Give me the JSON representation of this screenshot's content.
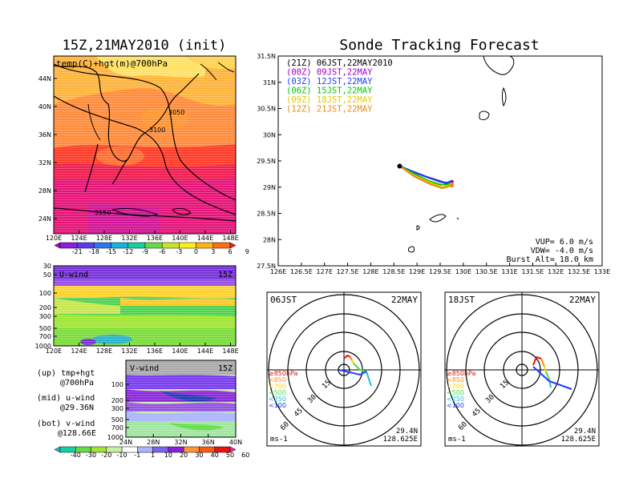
{
  "left": {
    "title": "15Z,21MAY2010 (init)",
    "map": {
      "label": "temp(C)+hgt(m)@700hPa",
      "y_ticks": [
        "44N",
        "40N",
        "36N",
        "32N",
        "28N",
        "24N"
      ],
      "x_ticks": [
        "120E",
        "124E",
        "128E",
        "132E",
        "136E",
        "140E",
        "144E",
        "148E"
      ],
      "contour_labels": [
        "3050",
        "3100",
        "3150"
      ]
    },
    "colorbar1": {
      "labels": [
        "-21",
        "-18",
        "-15",
        "-12",
        "-9",
        "-6",
        "-3",
        "0",
        "3",
        "6",
        "9"
      ],
      "colors": [
        "#b400b4",
        "#8c1edc",
        "#5a3cf0",
        "#2878f0",
        "#14b4dc",
        "#14d2a0",
        "#64dc46",
        "#c8e628",
        "#fff014",
        "#ffb414",
        "#ff6e14",
        "#f01e1e"
      ]
    },
    "uwind": {
      "label": "U-wind",
      "time": "15Z",
      "y_ticks": [
        "30",
        "50",
        "100",
        "200",
        "300",
        "500",
        "700",
        "1000"
      ],
      "x_ticks": [
        "120E",
        "124E",
        "128E",
        "132E",
        "136E",
        "140E",
        "144E",
        "148E"
      ]
    },
    "vwind": {
      "label": "V-wind",
      "time": "15Z",
      "y_ticks": [
        "100",
        "200",
        "300",
        "500",
        "700",
        "1000"
      ],
      "x_ticks": [
        "24N",
        "28N",
        "32N",
        "36N",
        "40N"
      ]
    },
    "notes": [
      {
        "head": "(up) tmp+hgt",
        "sub": "@700hPa"
      },
      {
        "head": "(mid) u-wind",
        "sub": "@29.36N"
      },
      {
        "head": "(bot) v-wind",
        "sub": "@128.66E"
      }
    ],
    "colorbar2": {
      "labels": [
        "-40",
        "-30",
        "-20",
        "-10",
        "-1",
        "1",
        "10",
        "20",
        "30",
        "40",
        "50",
        "60"
      ],
      "colors": [
        "#1eb4dc",
        "#14d2a0",
        "#64dc46",
        "#a0e632",
        "#c8f0a0",
        "#ffffff",
        "#aab4ff",
        "#7a64f0",
        "#8c1edc",
        "#ff9632",
        "#ff5a14",
        "#e61414",
        "#ff1ea0"
      ]
    }
  },
  "right": {
    "title": "Sonde Tracking Forecast",
    "legend": [
      {
        "text": "(21Z) 06JST,22MAY2010",
        "color": "#000000"
      },
      {
        "text": "(00Z) 09JST,22MAY",
        "color": "#a000c8"
      },
      {
        "text": "(03Z) 12JST,22MAY",
        "color": "#1e3cff"
      },
      {
        "text": "(06Z) 15JST,22MAY",
        "color": "#00c800"
      },
      {
        "text": "(09Z) 18JST,22MAY",
        "color": "#e6c800"
      },
      {
        "text": "(12Z) 21JST,22MAY",
        "color": "#e68c14"
      }
    ],
    "params": [
      "VUP= 6.0 m/s",
      "VDW= -4.0 m/s",
      "Burst Alt= 18.0 km"
    ],
    "y_ticks": [
      "31.5N",
      "31N",
      "30.5N",
      "30N",
      "29.5N",
      "29N",
      "28.5N",
      "28N",
      "27.5N"
    ],
    "x_ticks": [
      "126E",
      "126.5E",
      "127E",
      "127.5E",
      "128E",
      "128.5E",
      "129E",
      "129.5E",
      "130E",
      "130.5E",
      "131E",
      "131.5E",
      "132E",
      "132.5E",
      "133E"
    ]
  },
  "polar": [
    {
      "time": "06JST",
      "date": "22MAY",
      "lat": "29.4N",
      "lon": "128.625E",
      "unit": "ms-1",
      "rings": [
        "15",
        "30",
        "45",
        "60"
      ],
      "levels": [
        "≥850hPa",
        "<850",
        "<700",
        "<500",
        "<250",
        "<100"
      ]
    },
    {
      "time": "18JST",
      "date": "22MAY",
      "lat": "29.4N",
      "lon": "128.625E",
      "unit": "ms-1",
      "rings": [
        "15",
        "30",
        "45",
        "60"
      ],
      "levels": [
        "≥850hPa",
        "<850",
        "<700",
        "<500",
        "<250",
        "<100"
      ]
    }
  ],
  "level_colors": [
    "#e61414",
    "#ff8c00",
    "#ffd200",
    "#46dc46",
    "#1ebedc",
    "#1e3cff"
  ],
  "chart_data": {
    "type": "line",
    "title": "Sonde Tracking Forecast",
    "xlim": [
      126,
      133
    ],
    "ylim": [
      27.5,
      31.5
    ],
    "series": [
      {
        "name": "(21Z) 06JST,22MAY2010",
        "x": [
          128.625,
          128.9,
          129.2,
          129.55,
          129.75
        ],
        "y": [
          29.4,
          29.3,
          29.2,
          29.1,
          29.05
        ]
      },
      {
        "name": "(00Z) 09JST,22MAY",
        "x": [
          128.625,
          128.95,
          129.25,
          129.6,
          129.75
        ],
        "y": [
          29.4,
          29.28,
          29.18,
          29.08,
          29.1
        ]
      },
      {
        "name": "(03Z) 12JST,22MAY",
        "x": [
          128.625,
          128.9,
          129.2,
          129.5,
          129.7
        ],
        "y": [
          29.4,
          29.3,
          29.2,
          29.1,
          29.08
        ]
      },
      {
        "name": "(06Z) 15JST,22MAY",
        "x": [
          128.625,
          128.95,
          129.25,
          129.5,
          129.7
        ],
        "y": [
          29.4,
          29.25,
          29.12,
          29.05,
          29.05
        ]
      },
      {
        "name": "(09Z) 18JST,22MAY",
        "x": [
          128.625,
          128.95,
          129.3,
          129.55,
          129.75
        ],
        "y": [
          29.4,
          29.22,
          29.08,
          29.0,
          29.05
        ]
      },
      {
        "name": "(12Z) 21JST,22MAY",
        "x": [
          128.625,
          128.95,
          129.3,
          129.55,
          129.75
        ],
        "y": [
          29.4,
          29.2,
          29.05,
          28.98,
          29.03
        ]
      }
    ]
  }
}
